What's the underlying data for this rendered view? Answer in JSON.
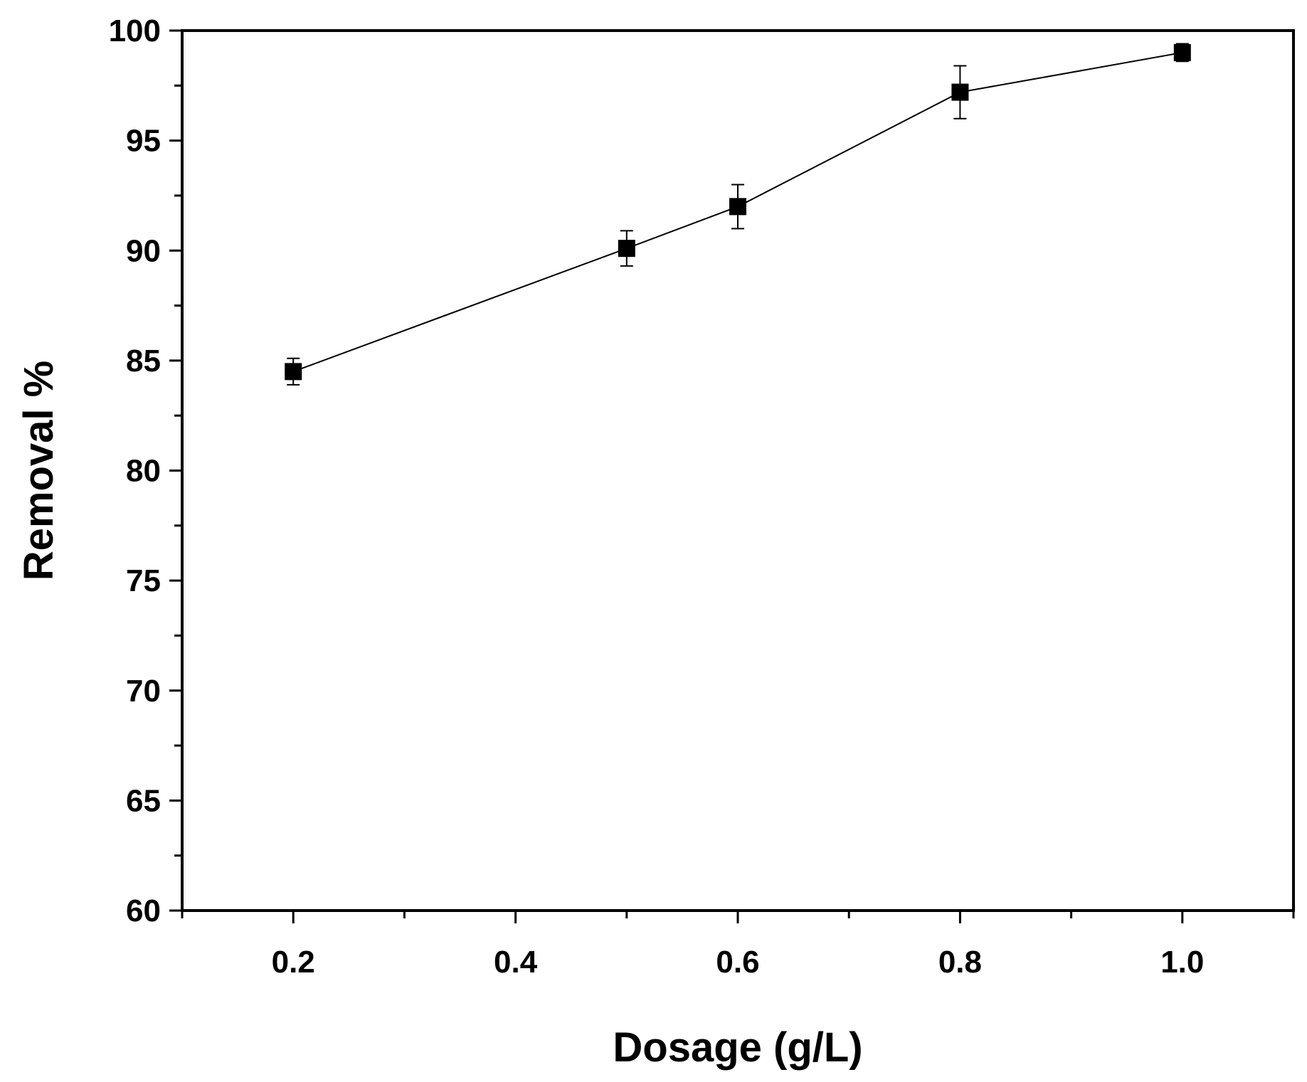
{
  "chart_data": {
    "type": "line",
    "title": "",
    "xlabel": "Dosage (g/L)",
    "ylabel": "Removal %",
    "xlim": [
      0.1,
      1.1
    ],
    "ylim": [
      60,
      100
    ],
    "x_ticks": [
      0.2,
      0.4,
      0.6,
      0.8,
      1.0
    ],
    "x_tick_labels": [
      "0.2",
      "0.4",
      "0.6",
      "0.8",
      "1.0"
    ],
    "x_minor_ticks": [
      0.1,
      0.3,
      0.5,
      0.7,
      0.9,
      1.1
    ],
    "y_ticks": [
      60,
      65,
      70,
      75,
      80,
      85,
      90,
      95,
      100
    ],
    "y_tick_labels": [
      "60",
      "65",
      "70",
      "75",
      "80",
      "85",
      "90",
      "95",
      "100"
    ],
    "y_minor_ticks": [
      62.5,
      67.5,
      72.5,
      77.5,
      82.5,
      87.5,
      92.5,
      97.5
    ],
    "grid": false,
    "legend": "none",
    "series": [
      {
        "marker": "square",
        "color": "#000000",
        "x": [
          0.2,
          0.5,
          0.6,
          0.8,
          1.0
        ],
        "y": [
          84.5,
          90.1,
          92.0,
          97.2,
          99.0
        ],
        "error": [
          0.6,
          0.8,
          1.0,
          1.2,
          0.4
        ]
      }
    ]
  }
}
